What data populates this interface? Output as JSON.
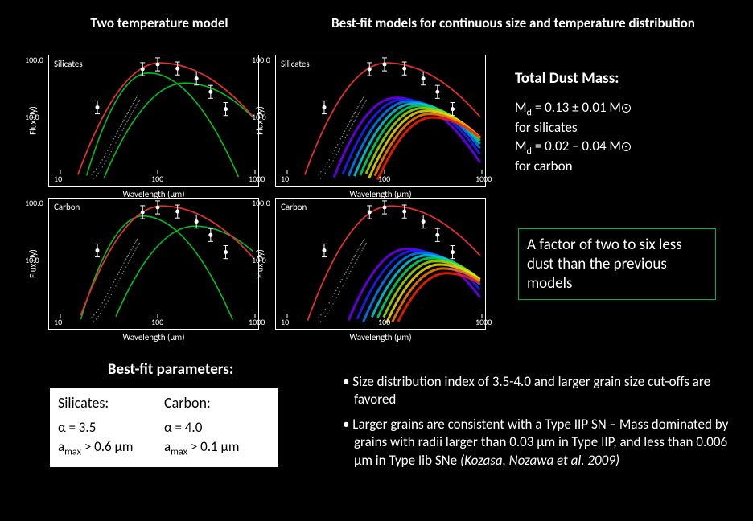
{
  "headers": {
    "left": "Two temperature model",
    "right": "Best-fit models for continuous size and temperature distribution"
  },
  "charts": {
    "xlabel": "Wavelength (μm)",
    "ylabel": "Flux (Jy)",
    "xlim": [
      10,
      1000
    ],
    "ylim": [
      1,
      100
    ],
    "xticks": [
      "10",
      "100",
      "1000"
    ],
    "yticks": [
      "100.0",
      "10.0"
    ],
    "colors": {
      "red": "#e03030",
      "green": "#00c020",
      "white": "#ffffff",
      "bg": "#000000",
      "axis": "#ffffff"
    },
    "rainbow": [
      "#7000ff",
      "#2020ff",
      "#0080ff",
      "#00d0e0",
      "#00e060",
      "#a0e000",
      "#f0e000",
      "#ff8000",
      "#ff2000"
    ],
    "panels": [
      {
        "material": "Silicates",
        "kind": "two-temp",
        "row": 0,
        "col": 0
      },
      {
        "material": "Silicates",
        "kind": "continuous",
        "row": 0,
        "col": 1
      },
      {
        "material": "Carbon",
        "kind": "two-temp",
        "row": 1,
        "col": 0
      },
      {
        "material": "Carbon",
        "kind": "continuous",
        "row": 1,
        "col": 1
      }
    ],
    "data_points_x": [
      24,
      70,
      100,
      160,
      250,
      350,
      500
    ],
    "data_points_y": [
      15,
      70,
      85,
      72,
      48,
      28,
      14
    ]
  },
  "mass": {
    "title": "Total Dust Mass:",
    "silicates": {
      "label_prefix": "M",
      "label_sub": "d",
      "value": " = 0.13 ± 0.01 M",
      "note": "for silicates"
    },
    "carbon": {
      "label_prefix": "M",
      "label_sub": "d",
      "value": " = 0.02 – 0.04 M",
      "note": "for carbon"
    }
  },
  "factor_box": "A factor of two to six less dust than the previous models",
  "params": {
    "title": "Best-fit parameters:",
    "silicates_hdr": "Silicates:",
    "carbon_hdr": "Carbon:",
    "silicates_alpha": "α = 3.5",
    "carbon_alpha": "α = 4.0",
    "silicates_amax": " > 0.6 μm",
    "carbon_amax": " > 0.1 μm",
    "amax_prefix": "a",
    "amax_sub": "max"
  },
  "bullets": {
    "b1": "• Size distribution index of 3.5-4.0 and larger grain size cut-offs are favored",
    "b2_a": "• Larger grains are consistent with a Type IIP SN – Mass dominated by grains with radii larger than 0.03 μm in Type IIP, and less than 0.006 μm in Type Iib SNe ",
    "b2_ref": "(Kozasa, Nozawa et al. 2009)"
  }
}
